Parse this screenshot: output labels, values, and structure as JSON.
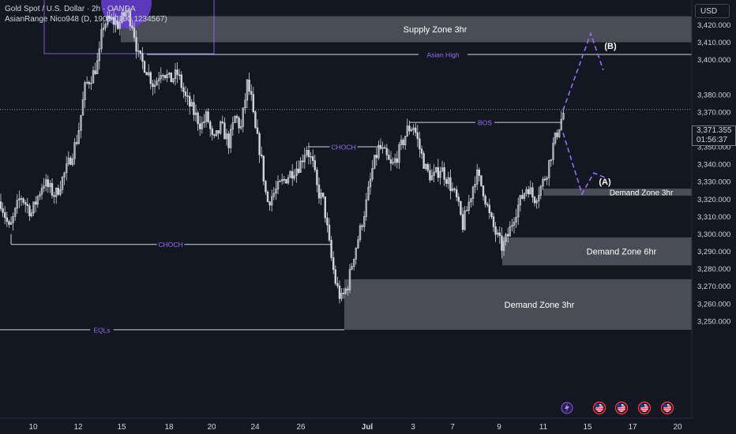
{
  "header": {
    "line1": "Gold Spot / U.S. Dollar · 2h · OANDA",
    "line2": "AsianRange Nico948 (D, 1900-0100 1234567)"
  },
  "currency_button": "USD",
  "current_price": {
    "price": "3,371.355",
    "countdown": "01:56:37"
  },
  "colors": {
    "background": "#131722",
    "zone_fill": "#5d606b",
    "annotation": "#9b6cf0",
    "candle": "#d1d4dc"
  },
  "chart_data": {
    "type": "candlestick",
    "symbol": "Gold Spot / U.S. Dollar",
    "timeframe": "2h",
    "y_axis": {
      "range": [
        3242,
        3430
      ],
      "ticks": [
        3250,
        3260,
        3270,
        3280,
        3290,
        3300,
        3310,
        3320,
        3330,
        3340,
        3350,
        3360,
        3370,
        3380,
        3400,
        3410,
        3420
      ],
      "tick_labels": [
        "3,250.000",
        "3,260.000",
        "3,270.000",
        "3,280.000",
        "3,290.000",
        "3,300.000",
        "3,310.000",
        "3,320.000",
        "3,330.000",
        "3,340.000",
        "3,350.000",
        "3,360.000",
        "3,370.000",
        "3,380.000",
        "3,400.000",
        "3,410.000",
        "3,420.000"
      ]
    },
    "x_axis": {
      "tick_labels": [
        "10",
        "12",
        "15",
        "18",
        "20",
        "24",
        "26",
        "Jul",
        "3",
        "7",
        "9",
        "11",
        "15",
        "17",
        "20"
      ]
    },
    "price_path": [
      [
        0,
        3320
      ],
      [
        12,
        3302
      ],
      [
        26,
        3322
      ],
      [
        40,
        3312
      ],
      [
        55,
        3330
      ],
      [
        70,
        3322
      ],
      [
        85,
        3338
      ],
      [
        98,
        3355
      ],
      [
        108,
        3385
      ],
      [
        118,
        3392
      ],
      [
        125,
        3400
      ],
      [
        130,
        3420
      ],
      [
        140,
        3423
      ],
      [
        150,
        3420
      ],
      [
        160,
        3428
      ],
      [
        168,
        3420
      ],
      [
        175,
        3402
      ],
      [
        185,
        3395
      ],
      [
        195,
        3385
      ],
      [
        205,
        3395
      ],
      [
        215,
        3388
      ],
      [
        225,
        3392
      ],
      [
        235,
        3378
      ],
      [
        245,
        3370
      ],
      [
        255,
        3362
      ],
      [
        262,
        3368
      ],
      [
        270,
        3352
      ],
      [
        280,
        3362
      ],
      [
        290,
        3352
      ],
      [
        298,
        3368
      ],
      [
        305,
        3360
      ],
      [
        313,
        3386
      ],
      [
        318,
        3378
      ],
      [
        322,
        3362
      ],
      [
        330,
        3346
      ],
      [
        338,
        3318
      ],
      [
        348,
        3324
      ],
      [
        358,
        3330
      ],
      [
        368,
        3335
      ],
      [
        380,
        3340
      ],
      [
        388,
        3350
      ],
      [
        396,
        3340
      ],
      [
        402,
        3325
      ],
      [
        410,
        3318
      ],
      [
        418,
        3290
      ],
      [
        425,
        3272
      ],
      [
        432,
        3262
      ],
      [
        440,
        3270
      ],
      [
        448,
        3288
      ],
      [
        456,
        3302
      ],
      [
        464,
        3318
      ],
      [
        472,
        3338
      ],
      [
        480,
        3350
      ],
      [
        488,
        3345
      ],
      [
        496,
        3338
      ],
      [
        506,
        3348
      ],
      [
        516,
        3360
      ],
      [
        524,
        3362
      ],
      [
        532,
        3348
      ],
      [
        540,
        3336
      ],
      [
        548,
        3332
      ],
      [
        558,
        3338
      ],
      [
        568,
        3330
      ],
      [
        578,
        3320
      ],
      [
        586,
        3305
      ],
      [
        595,
        3320
      ],
      [
        603,
        3335
      ],
      [
        612,
        3325
      ],
      [
        620,
        3310
      ],
      [
        628,
        3300
      ],
      [
        636,
        3292
      ],
      [
        644,
        3300
      ],
      [
        652,
        3312
      ],
      [
        660,
        3320
      ],
      [
        668,
        3328
      ],
      [
        676,
        3320
      ],
      [
        684,
        3326
      ],
      [
        692,
        3335
      ],
      [
        700,
        3350
      ],
      [
        708,
        3362
      ],
      [
        715,
        3371.4
      ]
    ],
    "zones": [
      {
        "label": "Supply Zone 3hr",
        "top": 3425,
        "bottom": 3410
      },
      {
        "label": "Demand Zone 3hr",
        "top": 3326,
        "bottom": 3322
      },
      {
        "label": "Demand Zone 6hr",
        "top": 3298,
        "bottom": 3282
      },
      {
        "label": "Demand Zone 3hr",
        "top": 3274,
        "bottom": 3245
      }
    ],
    "levels": [
      {
        "label": "Asian High",
        "price": 3403
      },
      {
        "label": "BOS",
        "price": 3364
      },
      {
        "label": "CHOCH",
        "price": 3350
      },
      {
        "label": "CHOCH",
        "price": 3294
      },
      {
        "label": "EQLs",
        "price": 3245
      }
    ],
    "projections": [
      {
        "label": "(B)",
        "path": [
          3371,
          3415,
          3394
        ]
      },
      {
        "label": "(A)",
        "path": [
          3358,
          3323,
          3335,
          3332
        ]
      }
    ]
  }
}
